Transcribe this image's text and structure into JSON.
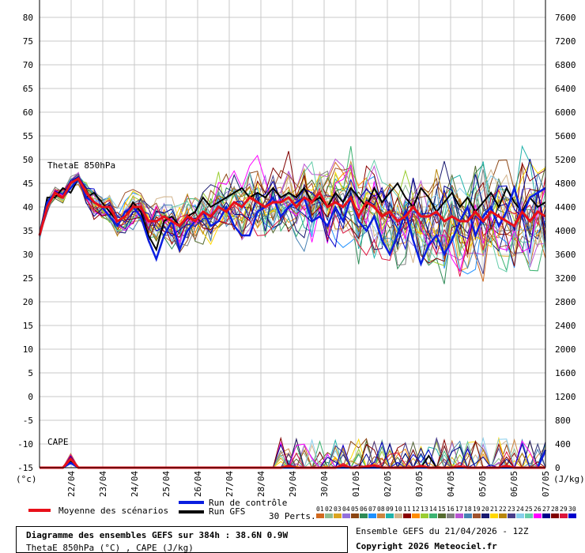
{
  "chart_data": {
    "type": "line",
    "left_axis": {
      "unit": "(°c)",
      "ticks": [
        80,
        75,
        70,
        65,
        60,
        55,
        50,
        45,
        40,
        35,
        30,
        25,
        20,
        15,
        10,
        5,
        0,
        -5,
        -10,
        -15
      ],
      "ylim": [
        -15,
        80
      ]
    },
    "right_axis": {
      "unit": "(J/kg)",
      "ticks": [
        7600,
        7200,
        6800,
        6400,
        6000,
        5600,
        5200,
        4800,
        4400,
        4000,
        3600,
        3200,
        2800,
        2400,
        2000,
        1600,
        1200,
        800,
        400,
        0
      ],
      "ylim": [
        0,
        7600
      ]
    },
    "x_ticks": [
      "22/04",
      "23/04",
      "24/04",
      "25/04",
      "26/04",
      "27/04",
      "28/04",
      "29/04",
      "30/04",
      "01/05",
      "02/05",
      "03/05",
      "04/05",
      "05/05",
      "06/05",
      "07/05"
    ],
    "grid": true,
    "annotations": [
      "ThetaE 850hPa",
      "CAPE"
    ],
    "series": [
      {
        "name": "Moyenne des scénarios",
        "color": "#e8101a",
        "values": [
          34,
          40,
          43,
          42,
          45,
          46,
          43,
          41,
          40,
          40,
          37,
          38,
          40,
          40,
          37,
          37,
          38,
          37,
          36,
          38,
          37,
          39,
          38,
          40,
          39,
          41,
          40,
          42,
          41,
          40,
          41,
          41,
          42,
          40,
          42,
          41,
          43,
          40,
          41,
          40,
          42,
          38,
          41,
          40,
          38,
          39,
          37,
          38,
          40,
          38,
          38,
          39,
          37,
          38,
          37,
          37,
          39,
          37,
          39,
          38,
          37,
          36,
          39,
          37,
          39,
          38
        ]
      },
      {
        "name": "Run de contrôle",
        "color": "#0a1ee0",
        "values": [
          34,
          41,
          43,
          42,
          44,
          46,
          42,
          41,
          40,
          38,
          36,
          39,
          40,
          38,
          33,
          29,
          34,
          37,
          31,
          35,
          37,
          39,
          36,
          37,
          40,
          36,
          34,
          34,
          39,
          40,
          42,
          38,
          40,
          41,
          42,
          37,
          38,
          36,
          40,
          37,
          42,
          37,
          35,
          38,
          33,
          30,
          34,
          39,
          33,
          28,
          32,
          34,
          30,
          33,
          37,
          40,
          34,
          38,
          40,
          36,
          39,
          44,
          38,
          42,
          43,
          44
        ]
      },
      {
        "name": "Run GFS",
        "color": "#000000",
        "values": [
          34,
          42,
          42,
          44,
          43,
          46,
          42,
          43,
          41,
          39,
          37,
          38,
          41,
          39,
          34,
          31,
          37,
          38,
          36,
          38,
          39,
          42,
          40,
          41,
          42,
          43,
          44,
          42,
          43,
          42,
          44,
          42,
          43,
          42,
          44,
          41,
          42,
          40,
          43,
          41,
          44,
          42,
          40,
          44,
          41,
          43,
          45,
          42,
          40,
          44,
          42,
          39,
          41,
          43,
          40,
          42,
          39,
          41,
          43,
          40,
          44,
          41,
          39,
          42,
          40,
          41
        ]
      }
    ],
    "cape_series_j_per_kg": [
      {
        "name": "Moyenne des scénarios",
        "values": [
          0,
          0,
          0,
          0,
          150,
          0,
          0,
          0,
          0,
          0,
          0,
          0,
          0,
          0,
          0,
          0,
          0,
          0,
          0,
          0,
          0,
          0,
          0,
          0,
          0,
          0,
          0,
          0,
          0,
          0,
          0,
          0,
          30,
          0,
          0,
          0,
          0,
          0,
          0,
          40,
          0,
          0,
          20,
          40,
          0,
          0,
          0,
          0,
          0,
          30,
          0,
          0,
          0,
          0,
          20,
          0,
          0,
          0,
          0,
          0,
          30,
          0,
          0,
          0,
          0,
          0
        ]
      },
      {
        "name": "Run de contrôle",
        "values": [
          0,
          0,
          0,
          0,
          80,
          0,
          0,
          0,
          0,
          0,
          0,
          0,
          0,
          0,
          0,
          0,
          0,
          0,
          0,
          0,
          0,
          0,
          0,
          0,
          0,
          0,
          0,
          0,
          0,
          0,
          0,
          0,
          0,
          0,
          0,
          0,
          0,
          0,
          0,
          0,
          0,
          0,
          0,
          0,
          0,
          0,
          0,
          0,
          0,
          0,
          0,
          0,
          0,
          0,
          0,
          0,
          0,
          0,
          0,
          0,
          0,
          0,
          0,
          0,
          0,
          300
        ]
      },
      {
        "name": "Run GFS",
        "values": [
          0,
          0,
          0,
          0,
          120,
          0,
          0,
          0,
          0,
          0,
          0,
          0,
          0,
          0,
          0,
          0,
          0,
          0,
          0,
          0,
          0,
          0,
          0,
          0,
          0,
          0,
          0,
          0,
          0,
          0,
          0,
          0,
          0,
          0,
          0,
          0,
          0,
          0,
          0,
          0,
          0,
          0,
          0,
          0,
          0,
          0,
          0,
          0,
          0,
          0,
          200,
          0,
          0,
          0,
          0,
          0,
          0,
          0,
          0,
          0,
          0,
          0,
          0,
          0,
          0,
          0
        ]
      }
    ]
  },
  "legend": {
    "mean_label": "Moyenne des scénarios",
    "control_label": "Run de contrôle",
    "gfs_label": "Run GFS",
    "perts_label": "30 Perts.",
    "pert_numbers": [
      "01",
      "02",
      "03",
      "04",
      "05",
      "06",
      "07",
      "08",
      "09",
      "10",
      "11",
      "12",
      "13",
      "14",
      "15",
      "16",
      "17",
      "18",
      "19",
      "20",
      "21",
      "22",
      "23",
      "24",
      "25",
      "26",
      "27",
      "28",
      "29",
      "30"
    ],
    "pert_colors": [
      "#d2691e",
      "#8fbc8f",
      "#daa520",
      "#9370db",
      "#8b4513",
      "#2e8b57",
      "#1e90ff",
      "#cd853f",
      "#20b2aa",
      "#d2b48c",
      "#8b0000",
      "#ff8c00",
      "#9acd32",
      "#3cb371",
      "#556b2f",
      "#808080",
      "#ba55d3",
      "#4682b4",
      "#a0522d",
      "#191970",
      "#ffd700",
      "#b8860b",
      "#483d8b",
      "#87ceeb",
      "#66cdaa",
      "#ff00ff",
      "#00008b",
      "#800000",
      "#dc143c",
      "#0000cd"
    ]
  },
  "info": {
    "title": "Diagramme des ensembles GEFS sur 384h : 38.6N 0.9W",
    "subtitle": "ThetaE 850hPa (°C) , CAPE (J/kg)",
    "ensemble": "Ensemble GEFS du 21/04/2026 - 12Z",
    "copyright": "Copyright 2026 Meteociel.fr"
  }
}
